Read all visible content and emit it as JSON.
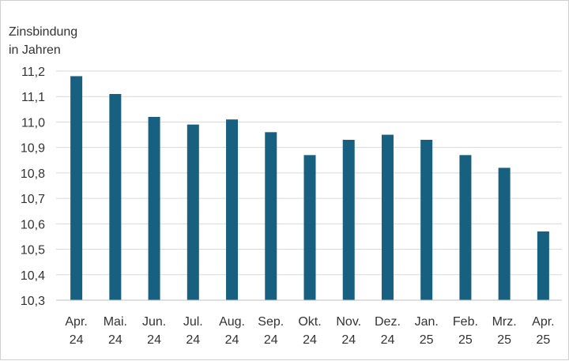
{
  "chart_data": {
    "type": "bar",
    "ylabel_lines": [
      "Zinsbindung",
      "in Jahren"
    ],
    "categories": [
      [
        "Apr.",
        "24"
      ],
      [
        "Mai.",
        "24"
      ],
      [
        "Jun.",
        "24"
      ],
      [
        "Jul.",
        "24"
      ],
      [
        "Aug.",
        "24"
      ],
      [
        "Sep.",
        "24"
      ],
      [
        "Okt.",
        "24"
      ],
      [
        "Nov.",
        "24"
      ],
      [
        "Dez.",
        "24"
      ],
      [
        "Jan.",
        "25"
      ],
      [
        "Feb.",
        "25"
      ],
      [
        "Mrz.",
        "25"
      ],
      [
        "Apr.",
        "25"
      ]
    ],
    "values": [
      11.18,
      11.11,
      11.02,
      10.99,
      11.01,
      10.96,
      10.87,
      10.93,
      10.95,
      10.93,
      10.87,
      10.82,
      10.57
    ],
    "ylim": [
      10.3,
      11.2
    ],
    "yticks": [
      "10,3",
      "10,4",
      "10,5",
      "10,6",
      "10,7",
      "10,8",
      "10,9",
      "11,0",
      "11,1",
      "11,2"
    ],
    "grid": true,
    "bar_color": "#17607f",
    "grid_color": "#d9d9d9"
  }
}
